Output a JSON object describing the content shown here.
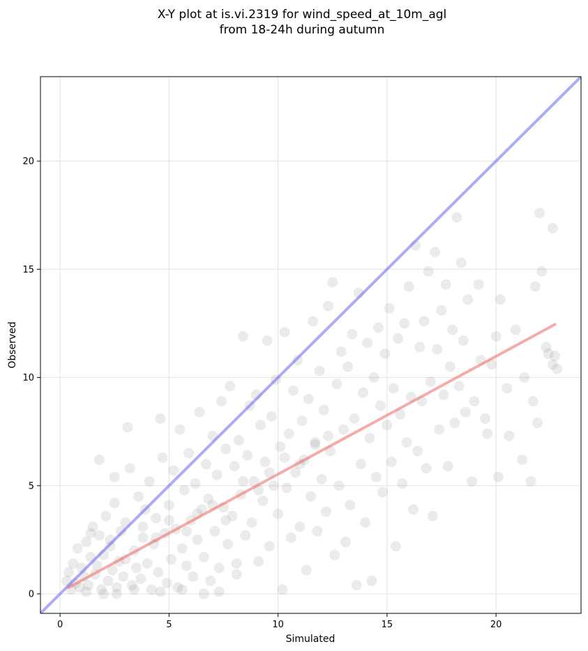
{
  "chart_data": {
    "type": "scatter",
    "title_line1": "X-Y plot at is.vi.2319 for wind_speed_at_10m_agl",
    "title_line2": "from 18-24h during autumn",
    "xlabel": "Simulated",
    "ylabel": "Observed",
    "xlim": [
      -0.9,
      23.9
    ],
    "ylim": [
      -0.9,
      23.9
    ],
    "xticks": [
      0,
      5,
      10,
      15,
      20
    ],
    "yticks": [
      0,
      5,
      10,
      15,
      20
    ],
    "grid": true,
    "colors": {
      "points": "#808080",
      "identity_line": "#6666ee",
      "fit_line": "#ee6666",
      "grid": "#e6e6e6"
    },
    "identity_line": {
      "x": [
        -0.9,
        23.9
      ],
      "y": [
        -0.9,
        23.9
      ]
    },
    "fit_line": {
      "x": [
        0.4,
        22.7
      ],
      "y": [
        0.3,
        12.45
      ]
    },
    "points": [
      [
        0.3,
        0.6
      ],
      [
        0.4,
        1.0
      ],
      [
        0.5,
        0.2
      ],
      [
        0.6,
        1.4
      ],
      [
        0.7,
        0.5
      ],
      [
        0.8,
        2.1
      ],
      [
        0.9,
        0.3
      ],
      [
        1.0,
        1.2
      ],
      [
        1.1,
        0.8
      ],
      [
        1.2,
        2.4
      ],
      [
        1.3,
        0.4
      ],
      [
        1.4,
        1.7
      ],
      [
        1.5,
        3.1
      ],
      [
        1.6,
        0.9
      ],
      [
        1.7,
        1.3
      ],
      [
        1.8,
        2.7
      ],
      [
        1.9,
        0.2
      ],
      [
        2.0,
        1.8
      ],
      [
        2.1,
        3.6
      ],
      [
        2.2,
        0.6
      ],
      [
        2.3,
        2.2
      ],
      [
        2.4,
        1.1
      ],
      [
        2.5,
        4.2
      ],
      [
        2.6,
        0.3
      ],
      [
        2.7,
        1.5
      ],
      [
        2.8,
        2.9
      ],
      [
        2.9,
        0.8
      ],
      [
        3.0,
        3.3
      ],
      [
        3.1,
        7.7
      ],
      [
        3.2,
        5.8
      ],
      [
        1.8,
        6.2
      ],
      [
        2.5,
        5.4
      ],
      [
        3.3,
        0.4
      ],
      [
        3.4,
        2.0
      ],
      [
        3.5,
        1.2
      ],
      [
        3.6,
        4.5
      ],
      [
        3.7,
        0.7
      ],
      [
        3.8,
        2.6
      ],
      [
        3.9,
        3.9
      ],
      [
        4.0,
        1.4
      ],
      [
        4.1,
        5.2
      ],
      [
        4.2,
        0.2
      ],
      [
        4.3,
        2.3
      ],
      [
        4.4,
        3.5
      ],
      [
        4.5,
        1.0
      ],
      [
        4.6,
        8.1
      ],
      [
        4.7,
        6.3
      ],
      [
        4.8,
        2.8
      ],
      [
        4.9,
        0.5
      ],
      [
        5.0,
        4.1
      ],
      [
        5.1,
        1.6
      ],
      [
        5.2,
        5.7
      ],
      [
        5.3,
        3.0
      ],
      [
        5.4,
        0.3
      ],
      [
        5.5,
        7.6
      ],
      [
        5.6,
        2.1
      ],
      [
        5.7,
        4.8
      ],
      [
        5.8,
        1.3
      ],
      [
        5.9,
        6.5
      ],
      [
        6.0,
        3.4
      ],
      [
        6.1,
        0.8
      ],
      [
        6.2,
        5.1
      ],
      [
        6.3,
        2.5
      ],
      [
        6.4,
        8.4
      ],
      [
        6.5,
        3.9
      ],
      [
        6.6,
        1.7
      ],
      [
        6.7,
        6.0
      ],
      [
        6.8,
        4.4
      ],
      [
        6.9,
        0.6
      ],
      [
        7.0,
        7.3
      ],
      [
        7.1,
        2.9
      ],
      [
        7.2,
        5.5
      ],
      [
        7.3,
        1.2
      ],
      [
        7.4,
        8.9
      ],
      [
        7.5,
        4.0
      ],
      [
        7.6,
        6.7
      ],
      [
        7.7,
        2.3
      ],
      [
        7.8,
        9.6
      ],
      [
        7.9,
        3.6
      ],
      [
        8.0,
        5.9
      ],
      [
        8.1,
        0.9
      ],
      [
        8.2,
        7.1
      ],
      [
        8.3,
        4.6
      ],
      [
        8.4,
        11.9
      ],
      [
        8.5,
        2.7
      ],
      [
        8.6,
        6.4
      ],
      [
        8.7,
        8.7
      ],
      [
        8.8,
        3.3
      ],
      [
        8.9,
        5.2
      ],
      [
        9.0,
        9.2
      ],
      [
        9.1,
        1.5
      ],
      [
        9.2,
        7.8
      ],
      [
        9.3,
        4.3
      ],
      [
        9.4,
        6.1
      ],
      [
        9.5,
        11.7
      ],
      [
        9.6,
        2.2
      ],
      [
        9.7,
        8.2
      ],
      [
        9.8,
        5.0
      ],
      [
        9.9,
        9.9
      ],
      [
        10.0,
        3.7
      ],
      [
        10.1,
        6.8
      ],
      [
        10.2,
        0.2
      ],
      [
        10.3,
        12.1
      ],
      [
        10.4,
        4.9
      ],
      [
        10.5,
        7.4
      ],
      [
        10.6,
        2.6
      ],
      [
        10.7,
        9.4
      ],
      [
        10.8,
        5.6
      ],
      [
        10.9,
        10.8
      ],
      [
        11.0,
        3.1
      ],
      [
        11.1,
        8.0
      ],
      [
        11.2,
        6.2
      ],
      [
        11.3,
        1.1
      ],
      [
        11.4,
        9.0
      ],
      [
        11.5,
        4.5
      ],
      [
        11.6,
        12.6
      ],
      [
        11.7,
        7.0
      ],
      [
        11.8,
        2.9
      ],
      [
        11.9,
        10.3
      ],
      [
        12.0,
        5.3
      ],
      [
        12.1,
        8.5
      ],
      [
        12.2,
        3.8
      ],
      [
        12.3,
        13.3
      ],
      [
        12.4,
        6.6
      ],
      [
        12.5,
        14.4
      ],
      [
        12.6,
        1.8
      ],
      [
        12.7,
        9.7
      ],
      [
        12.8,
        5.0
      ],
      [
        12.9,
        11.2
      ],
      [
        13.0,
        7.6
      ],
      [
        13.1,
        2.4
      ],
      [
        13.2,
        10.5
      ],
      [
        13.3,
        4.1
      ],
      [
        13.4,
        12.0
      ],
      [
        13.5,
        8.1
      ],
      [
        13.6,
        0.4
      ],
      [
        13.7,
        13.9
      ],
      [
        13.8,
        6.0
      ],
      [
        13.9,
        9.3
      ],
      [
        14.0,
        3.3
      ],
      [
        14.1,
        11.6
      ],
      [
        14.2,
        7.2
      ],
      [
        14.3,
        0.6
      ],
      [
        14.4,
        10.0
      ],
      [
        14.5,
        5.4
      ],
      [
        14.6,
        12.3
      ],
      [
        14.7,
        8.7
      ],
      [
        14.8,
        4.7
      ],
      [
        14.9,
        11.1
      ],
      [
        15.0,
        7.8
      ],
      [
        15.1,
        13.2
      ],
      [
        15.2,
        6.1
      ],
      [
        15.3,
        9.5
      ],
      [
        15.4,
        2.2
      ],
      [
        15.5,
        11.8
      ],
      [
        15.6,
        8.3
      ],
      [
        15.7,
        5.1
      ],
      [
        15.8,
        12.5
      ],
      [
        15.9,
        7.0
      ],
      [
        16.0,
        14.2
      ],
      [
        16.1,
        9.1
      ],
      [
        16.2,
        3.9
      ],
      [
        16.3,
        16.1
      ],
      [
        16.4,
        6.6
      ],
      [
        16.5,
        11.4
      ],
      [
        16.6,
        8.9
      ],
      [
        16.7,
        12.6
      ],
      [
        16.8,
        5.8
      ],
      [
        16.9,
        14.9
      ],
      [
        17.0,
        9.8
      ],
      [
        17.1,
        3.6
      ],
      [
        17.2,
        15.8
      ],
      [
        17.3,
        11.3
      ],
      [
        17.4,
        7.6
      ],
      [
        17.5,
        13.1
      ],
      [
        17.6,
        9.2
      ],
      [
        17.7,
        14.3
      ],
      [
        17.8,
        5.9
      ],
      [
        17.9,
        10.5
      ],
      [
        18.0,
        12.2
      ],
      [
        18.1,
        7.9
      ],
      [
        18.2,
        17.4
      ],
      [
        18.3,
        9.6
      ],
      [
        18.4,
        15.3
      ],
      [
        18.5,
        11.7
      ],
      [
        18.6,
        8.4
      ],
      [
        18.7,
        13.6
      ],
      [
        18.9,
        5.2
      ],
      [
        19.0,
        8.9
      ],
      [
        19.2,
        14.3
      ],
      [
        19.3,
        10.8
      ],
      [
        19.5,
        8.1
      ],
      [
        19.6,
        7.4
      ],
      [
        19.8,
        10.6
      ],
      [
        20.0,
        11.9
      ],
      [
        20.1,
        5.4
      ],
      [
        20.2,
        13.6
      ],
      [
        20.5,
        9.5
      ],
      [
        20.6,
        7.3
      ],
      [
        20.9,
        12.2
      ],
      [
        21.2,
        6.2
      ],
      [
        21.3,
        10.0
      ],
      [
        21.6,
        5.2
      ],
      [
        21.7,
        8.9
      ],
      [
        21.8,
        14.2
      ],
      [
        21.9,
        7.9
      ],
      [
        22.0,
        17.6
      ],
      [
        22.1,
        14.9
      ],
      [
        22.3,
        11.4
      ],
      [
        22.4,
        11.1
      ],
      [
        22.6,
        16.9
      ],
      [
        22.6,
        10.6
      ],
      [
        22.7,
        11.0
      ],
      [
        22.8,
        10.4
      ],
      [
        1.2,
        0.1
      ],
      [
        2.0,
        0.0
      ],
      [
        2.6,
        0.0
      ],
      [
        3.4,
        0.2
      ],
      [
        4.6,
        0.1
      ],
      [
        5.6,
        0.2
      ],
      [
        6.6,
        0.0
      ],
      [
        7.3,
        0.1
      ],
      [
        8.1,
        1.4
      ],
      [
        1.4,
        2.8
      ],
      [
        2.3,
        2.5
      ],
      [
        3.0,
        1.6
      ],
      [
        3.8,
        3.1
      ],
      [
        4.4,
        2.6
      ],
      [
        5.0,
        3.4
      ],
      [
        5.8,
        2.9
      ],
      [
        6.3,
        3.7
      ],
      [
        7.0,
        4.1
      ],
      [
        7.6,
        3.4
      ],
      [
        8.4,
        5.2
      ],
      [
        9.1,
        4.8
      ],
      [
        9.6,
        5.6
      ],
      [
        10.3,
        6.3
      ],
      [
        11.0,
        6.0
      ],
      [
        11.7,
        6.9
      ],
      [
        12.3,
        7.3
      ]
    ]
  }
}
